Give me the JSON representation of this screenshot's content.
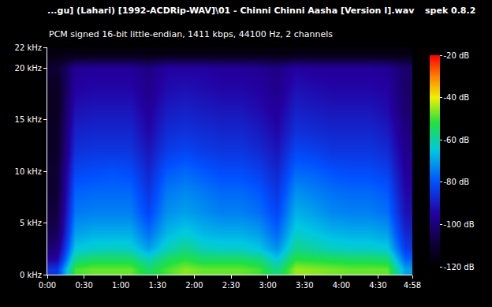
{
  "chart_data": {
    "type": "heatmap",
    "title": "...gu] (Lahari) [1992-ACDRip-WAV]\\01 - Chinni Chinni Aasha [Version I].wav",
    "subtitle": "PCM signed 16-bit little-endian, 1411 kbps, 44100 Hz, 2 channels",
    "annotations": [
      "spek 0.8.2"
    ],
    "x": [
      7.5,
      22.5,
      37.5,
      52.5,
      67.5,
      82.5,
      97.5,
      112.5,
      127.5,
      142.5,
      157.5,
      172.5,
      187.5,
      202.5,
      217.5,
      232.5,
      247.5,
      262.5,
      277.5,
      292.5
    ],
    "y": [
      0.5,
      1.5,
      2.5,
      4,
      6,
      8,
      10,
      12,
      14,
      16,
      18,
      20,
      21.5
    ],
    "cells": [
      [
        -85,
        -50,
        -48,
        -48,
        -48,
        -55,
        -50,
        -46,
        -48,
        -48,
        -48,
        -50,
        -58,
        -45,
        -46,
        -47,
        -48,
        -48,
        -48,
        -70
      ],
      [
        -95,
        -58,
        -55,
        -55,
        -55,
        -62,
        -55,
        -52,
        -55,
        -55,
        -55,
        -57,
        -65,
        -52,
        -53,
        -54,
        -55,
        -55,
        -56,
        -78
      ],
      [
        -100,
        -65,
        -63,
        -62,
        -63,
        -70,
        -62,
        -58,
        -62,
        -63,
        -63,
        -65,
        -72,
        -58,
        -60,
        -62,
        -63,
        -63,
        -64,
        -84
      ],
      [
        -105,
        -70,
        -68,
        -68,
        -68,
        -76,
        -67,
        -64,
        -67,
        -68,
        -68,
        -70,
        -77,
        -63,
        -65,
        -67,
        -68,
        -68,
        -70,
        -88
      ],
      [
        -108,
        -75,
        -74,
        -74,
        -74,
        -82,
        -72,
        -70,
        -72,
        -74,
        -74,
        -76,
        -82,
        -68,
        -70,
        -73,
        -74,
        -74,
        -76,
        -92
      ],
      [
        -110,
        -78,
        -77,
        -77,
        -77,
        -85,
        -75,
        -73,
        -75,
        -77,
        -77,
        -79,
        -85,
        -72,
        -74,
        -76,
        -77,
        -77,
        -79,
        -94
      ],
      [
        -110,
        -82,
        -81,
        -80,
        -81,
        -88,
        -79,
        -77,
        -79,
        -81,
        -81,
        -83,
        -88,
        -77,
        -78,
        -80,
        -81,
        -81,
        -83,
        -96
      ],
      [
        -112,
        -86,
        -85,
        -85,
        -85,
        -91,
        -84,
        -82,
        -84,
        -85,
        -85,
        -87,
        -91,
        -82,
        -83,
        -85,
        -85,
        -85,
        -87,
        -98
      ],
      [
        -112,
        -89,
        -88,
        -88,
        -88,
        -94,
        -87,
        -86,
        -87,
        -88,
        -88,
        -90,
        -94,
        -86,
        -87,
        -88,
        -88,
        -88,
        -90,
        -100
      ],
      [
        -113,
        -92,
        -91,
        -91,
        -91,
        -96,
        -90,
        -89,
        -90,
        -91,
        -91,
        -93,
        -96,
        -89,
        -90,
        -91,
        -91,
        -91,
        -93,
        -102
      ],
      [
        -113,
        -95,
        -94,
        -94,
        -94,
        -98,
        -93,
        -92,
        -93,
        -94,
        -94,
        -95,
        -98,
        -92,
        -93,
        -94,
        -94,
        -94,
        -95,
        -103
      ],
      [
        -110,
        -97,
        -96,
        -96,
        -96,
        -99,
        -95,
        -95,
        -95,
        -96,
        -96,
        -97,
        -99,
        -95,
        -96,
        -96,
        -96,
        -96,
        -97,
        -102
      ],
      [
        -117,
        -117,
        -117,
        -117,
        -117,
        -117,
        -117,
        -117,
        -117,
        -117,
        -117,
        -117,
        -117,
        -117,
        -117,
        -117,
        -117,
        -117,
        -117,
        -117
      ]
    ],
    "xlim": [
      0,
      298
    ],
    "xticks": [
      {
        "value": 0,
        "label": "0:00"
      },
      {
        "value": 30,
        "label": "0:30"
      },
      {
        "value": 60,
        "label": "1:00"
      },
      {
        "value": 90,
        "label": "1:30"
      },
      {
        "value": 120,
        "label": "2:00"
      },
      {
        "value": 150,
        "label": "2:30"
      },
      {
        "value": 180,
        "label": "3:00"
      },
      {
        "value": 210,
        "label": "3:30"
      },
      {
        "value": 240,
        "label": "4:00"
      },
      {
        "value": 270,
        "label": "4:30"
      },
      {
        "value": 298,
        "label": "4:58"
      }
    ],
    "ylim": [
      0,
      22
    ],
    "yticks": [
      {
        "value": 0,
        "label": "0 kHz"
      },
      {
        "value": 5,
        "label": "5 kHz"
      },
      {
        "value": 10,
        "label": "10 kHz"
      },
      {
        "value": 15,
        "label": "15 kHz"
      },
      {
        "value": 20,
        "label": "20 kHz"
      },
      {
        "value": 22,
        "label": "22 kHz"
      }
    ],
    "colorbar": {
      "range": [
        -120,
        -20
      ],
      "ticks": [
        {
          "value": -20,
          "label": "-20 dB"
        },
        {
          "value": -40,
          "label": "-40 dB"
        },
        {
          "value": -60,
          "label": "-60 dB"
        },
        {
          "value": -80,
          "label": "-80 dB"
        },
        {
          "value": -100,
          "label": "-100 dB"
        },
        {
          "value": -120,
          "label": "-120 dB"
        }
      ]
    },
    "grid": false
  }
}
